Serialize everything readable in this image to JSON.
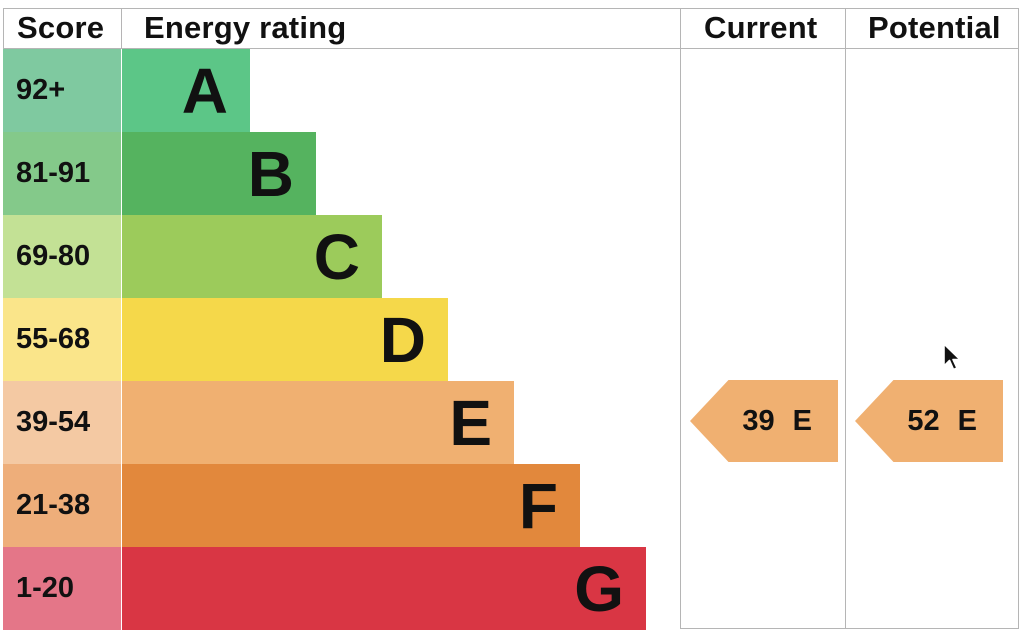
{
  "headers": {
    "score": "Score",
    "rating": "Energy rating",
    "current": "Current",
    "potential": "Potential"
  },
  "chart_data": {
    "type": "bar",
    "categories": [
      "A",
      "B",
      "C",
      "D",
      "E",
      "F",
      "G"
    ],
    "score_ranges": [
      "92+",
      "81-91",
      "69-80",
      "55-68",
      "39-54",
      "21-38",
      "1-20"
    ],
    "bands": [
      {
        "letter": "A",
        "range": "92+",
        "bar_color": "#5cc687",
        "score_color": "#7fc9a0"
      },
      {
        "letter": "B",
        "range": "81-91",
        "bar_color": "#55b35f",
        "score_color": "#84c98a"
      },
      {
        "letter": "C",
        "range": "69-80",
        "bar_color": "#9ccb5b",
        "score_color": "#c3e195"
      },
      {
        "letter": "D",
        "range": "55-68",
        "bar_color": "#f5d84a",
        "score_color": "#fae58a"
      },
      {
        "letter": "E",
        "range": "39-54",
        "bar_color": "#f0b071",
        "score_color": "#f4c9a3"
      },
      {
        "letter": "F",
        "range": "21-38",
        "bar_color": "#e2883c",
        "score_color": "#eeae7a"
      },
      {
        "letter": "G",
        "range": "1-20",
        "bar_color": "#d93644",
        "score_color": "#e47688"
      }
    ],
    "current": {
      "value": 39,
      "band": "E",
      "color": "#f0b071"
    },
    "potential": {
      "value": 52,
      "band": "E",
      "color": "#f0b071"
    }
  }
}
